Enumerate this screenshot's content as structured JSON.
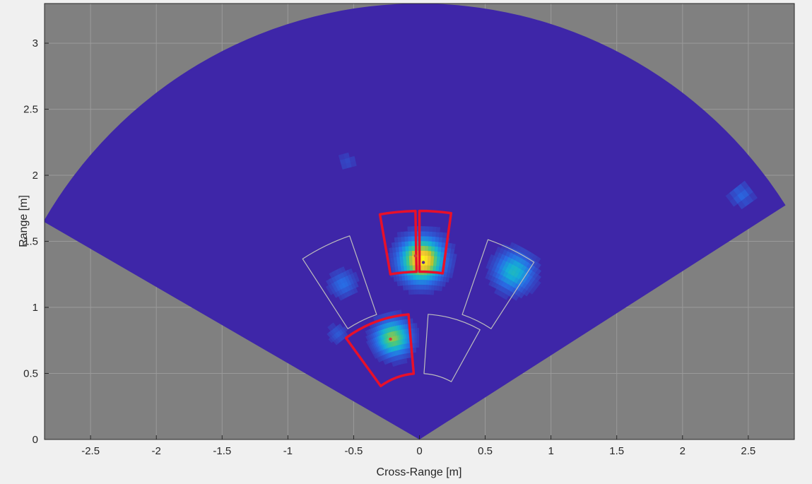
{
  "chart_data": {
    "type": "heatmap",
    "subtype": "polar-sector",
    "title": "",
    "xlabel": "Cross-Range [m]",
    "ylabel": "Range [m]",
    "xlim": [
      -2.85,
      2.85
    ],
    "ylim": [
      0,
      3.3
    ],
    "xticks": [
      -2.5,
      -2,
      -1.5,
      -1,
      -0.5,
      0,
      0.5,
      1,
      1.5,
      2,
      2.5
    ],
    "xtick_labels": [
      "-2.5",
      "-2",
      "-1.5",
      "-1",
      "-0.5",
      "0",
      "0.5",
      "1",
      "1.5",
      "2",
      "2.5"
    ],
    "yticks": [
      0,
      0.5,
      1,
      1.5,
      2,
      2.5,
      3
    ],
    "ytick_labels": [
      "0",
      "0.5",
      "1",
      "1.5",
      "2",
      "2.5",
      "3"
    ],
    "grid": true,
    "sector": {
      "max_range": 3.3,
      "az_left_deg": -60,
      "az_right_deg": 57.5
    },
    "colors": {
      "axes_background": "#808080",
      "grid": "#9a9a9a",
      "heatmap_low": "#3e26a8",
      "active_zone": "#e8102a",
      "inactive_zone": "#bdbdbd"
    },
    "hotspots": [
      {
        "x": 0.02,
        "y": 1.36,
        "intensity": 1.0,
        "spread": 0.11
      },
      {
        "x": -0.2,
        "y": 0.77,
        "intensity": 0.72,
        "spread": 0.09
      },
      {
        "x": 0.72,
        "y": 1.27,
        "intensity": 0.5,
        "spread": 0.1
      },
      {
        "x": -0.58,
        "y": 1.18,
        "intensity": 0.25,
        "spread": 0.07
      },
      {
        "x": -0.62,
        "y": 0.8,
        "intensity": 0.18,
        "spread": 0.05
      },
      {
        "x": -0.55,
        "y": 2.1,
        "intensity": 0.12,
        "spread": 0.05
      },
      {
        "x": 2.45,
        "y": 1.85,
        "intensity": 0.22,
        "spread": 0.06
      }
    ],
    "zones": [
      {
        "name": "zone-1",
        "r": [
          1.27,
          1.73
        ],
        "az_deg": [
          -10,
          -1
        ],
        "active": true
      },
      {
        "name": "zone-2",
        "r": [
          1.27,
          1.73
        ],
        "az_deg": [
          0,
          8
        ],
        "active": true
      },
      {
        "name": "zone-3",
        "r": [
          1.0,
          1.63
        ],
        "az_deg": [
          -33,
          -19
        ],
        "active": false
      },
      {
        "name": "zone-4",
        "r": [
          1.0,
          1.6
        ],
        "az_deg": [
          19,
          33
        ],
        "active": false
      },
      {
        "name": "zone-5",
        "r": [
          0.5,
          0.95
        ],
        "az_deg": [
          -36,
          -5
        ],
        "active": true
      },
      {
        "name": "zone-6",
        "r": [
          0.5,
          0.95
        ],
        "az_deg": [
          4,
          29
        ],
        "active": false
      }
    ],
    "markers": [
      {
        "x": -0.03,
        "y": 1.39,
        "color": "#d23c3c"
      },
      {
        "x": 0.03,
        "y": 1.34,
        "color": "#5a2f8a"
      },
      {
        "x": -0.22,
        "y": 0.76,
        "color": "#d23c3c"
      }
    ]
  }
}
